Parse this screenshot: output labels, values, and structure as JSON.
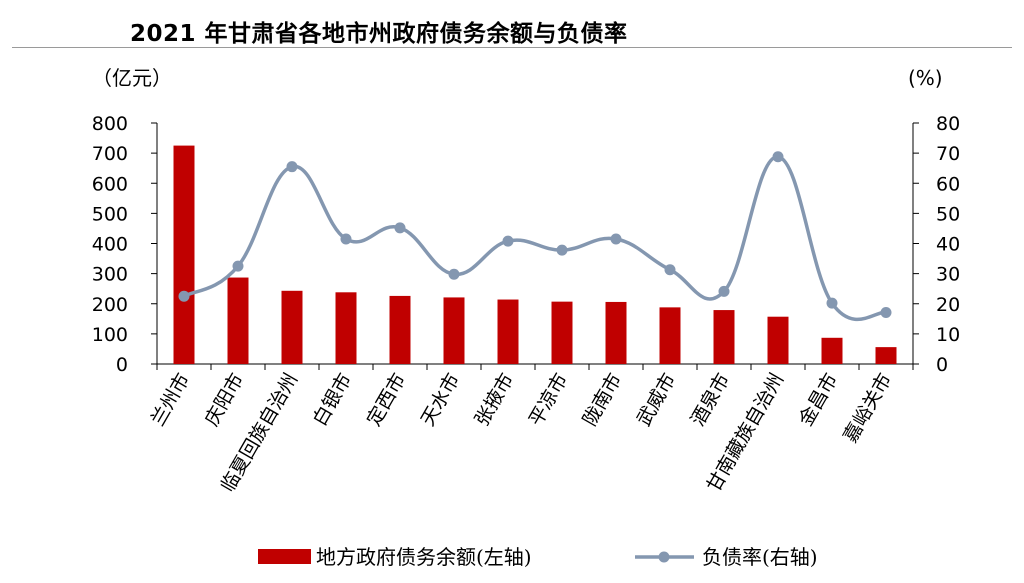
{
  "chart_data": {
    "type": "bar",
    "title": "2021 年甘肃省各地市州政府债务余额与负债率",
    "categories": [
      "兰州市",
      "庆阳市",
      "临夏回族自治州",
      "白银市",
      "定西市",
      "天水市",
      "张掖市",
      "平凉市",
      "陇南市",
      "武威市",
      "酒泉市",
      "甘南藏族自治州",
      "金昌市",
      "嘉峪关市"
    ],
    "series": [
      {
        "name": "地方政府债务余额(左轴)",
        "type": "bar",
        "axis": "left",
        "color": "#C00000",
        "values": [
          725,
          287,
          243,
          238,
          226,
          221,
          214,
          207,
          206,
          188,
          179,
          157,
          87,
          56
        ]
      },
      {
        "name": "负债率(右轴)",
        "type": "line",
        "axis": "right",
        "color": "#8497B0",
        "values": [
          22.5,
          32.5,
          65.5,
          41.5,
          45.2,
          29.8,
          40.8,
          37.8,
          41.5,
          31.3,
          24.1,
          68.8,
          20.2,
          17.1
        ]
      }
    ],
    "left_axis": {
      "unit": "（亿元）",
      "ylim": [
        0,
        800
      ],
      "ticks": [
        "0",
        "100",
        "200",
        "300",
        "400",
        "500",
        "600",
        "700",
        "800"
      ]
    },
    "right_axis": {
      "unit": "(%)",
      "ylim": [
        0,
        80
      ],
      "ticks": [
        "0",
        "10",
        "20",
        "30",
        "40",
        "50",
        "60",
        "70",
        "80"
      ]
    },
    "grid": false,
    "legend_position": "bottom"
  }
}
